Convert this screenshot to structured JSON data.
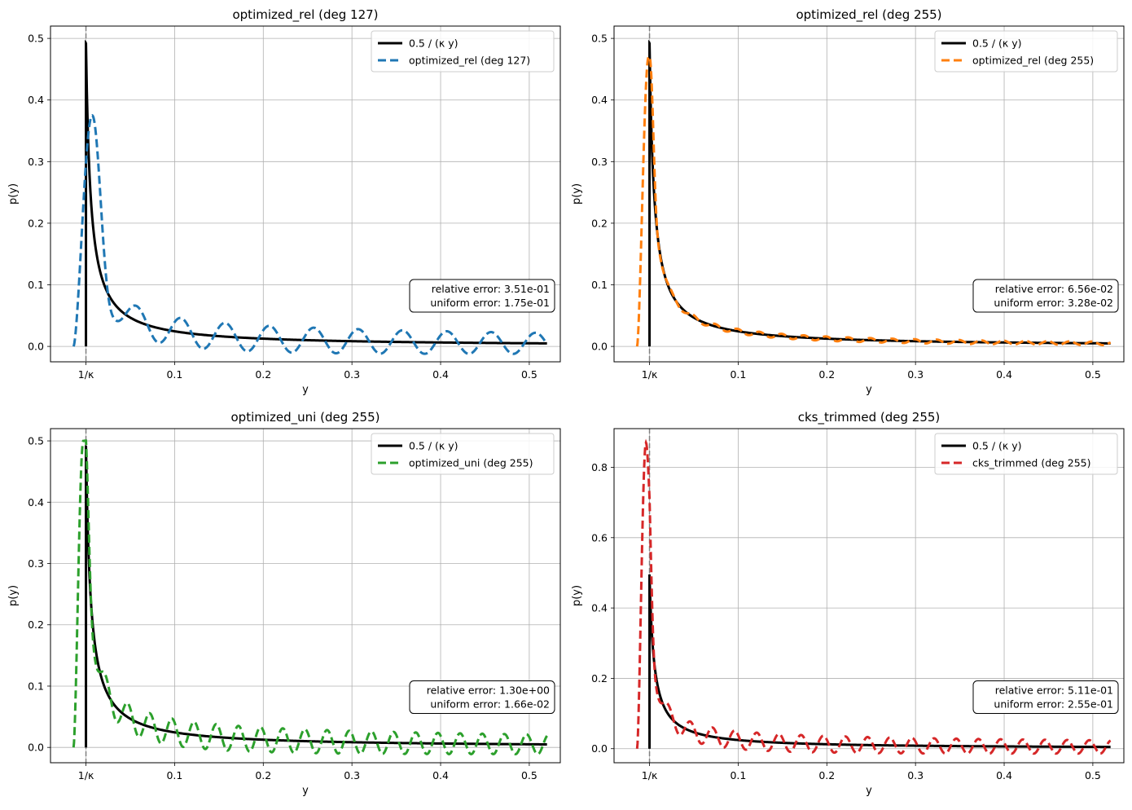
{
  "chart_data": [
    {
      "type": "line",
      "title": "optimized_rel (deg 127)",
      "xlabel": "y",
      "ylabel": "p(y)",
      "xlim": [
        -0.04,
        0.535
      ],
      "ylim": [
        -0.025,
        0.52
      ],
      "xticks": [
        0.1,
        0.2,
        0.3,
        0.4,
        0.5
      ],
      "xtick_labels": [
        "0.1",
        "0.2",
        "0.3",
        "0.4",
        "0.5"
      ],
      "special_tick": {
        "x": 0.0,
        "label": "1/κ"
      },
      "yticks": [
        0.0,
        0.1,
        0.2,
        0.3,
        0.4,
        0.5
      ],
      "ytick_labels": [
        "0.0",
        "0.1",
        "0.2",
        "0.3",
        "0.4",
        "0.5"
      ],
      "grid": true,
      "legend_position": "top-right",
      "reference": {
        "name": "0.5 / (κ y)",
        "color": "#000000",
        "y_at_cutoff": 0.492,
        "y_at_end": 0.014
      },
      "approx": {
        "name": "optimized_rel (deg 127)",
        "color": "#1f77b4",
        "peak": 0.375,
        "peak_x": 0.007,
        "tail_amplitude": 0.018,
        "tail_period": 0.05
      },
      "x_start": -0.014,
      "x_end": 0.52,
      "annotation": [
        "relative error: 3.51e-01",
        "uniform error: 1.75e-01"
      ]
    },
    {
      "type": "line",
      "title": "optimized_rel (deg 255)",
      "xlabel": "y",
      "ylabel": "p(y)",
      "xlim": [
        -0.04,
        0.535
      ],
      "ylim": [
        -0.025,
        0.52
      ],
      "xticks": [
        0.1,
        0.2,
        0.3,
        0.4,
        0.5
      ],
      "xtick_labels": [
        "0.1",
        "0.2",
        "0.3",
        "0.4",
        "0.5"
      ],
      "special_tick": {
        "x": 0.0,
        "label": "1/κ"
      },
      "yticks": [
        0.0,
        0.1,
        0.2,
        0.3,
        0.4,
        0.5
      ],
      "ytick_labels": [
        "0.0",
        "0.1",
        "0.2",
        "0.3",
        "0.4",
        "0.5"
      ],
      "grid": true,
      "legend_position": "top-right",
      "reference": {
        "name": "0.5 / (κ y)",
        "color": "#000000",
        "y_at_cutoff": 0.492,
        "y_at_end": 0.014
      },
      "approx": {
        "name": "optimized_rel (deg 255)",
        "color": "#ff7f0e",
        "peak": 0.47,
        "peak_x": -0.001,
        "tail_amplitude": 0.003,
        "tail_period": 0.025
      },
      "x_start": -0.014,
      "x_end": 0.52,
      "annotation": [
        "relative error: 6.56e-02",
        "uniform error: 3.28e-02"
      ]
    },
    {
      "type": "line",
      "title": "optimized_uni (deg 255)",
      "xlabel": "y",
      "ylabel": "p(y)",
      "xlim": [
        -0.04,
        0.535
      ],
      "ylim": [
        -0.025,
        0.52
      ],
      "xticks": [
        0.1,
        0.2,
        0.3,
        0.4,
        0.5
      ],
      "xtick_labels": [
        "0.1",
        "0.2",
        "0.3",
        "0.4",
        "0.5"
      ],
      "special_tick": {
        "x": 0.0,
        "label": "1/κ"
      },
      "yticks": [
        0.0,
        0.1,
        0.2,
        0.3,
        0.4,
        0.5
      ],
      "ytick_labels": [
        "0.0",
        "0.1",
        "0.2",
        "0.3",
        "0.4",
        "0.5"
      ],
      "grid": true,
      "legend_position": "top-right",
      "reference": {
        "name": "0.5 / (κ y)",
        "color": "#000000",
        "y_at_cutoff": 0.492,
        "y_at_end": 0.014
      },
      "approx": {
        "name": "optimized_uni (deg 255)",
        "color": "#2ca02c",
        "peak": 0.5,
        "peak_x": -0.003,
        "tail_amplitude": 0.017,
        "tail_period": 0.025
      },
      "x_start": -0.014,
      "x_end": 0.52,
      "annotation": [
        "relative error: 1.30e+00",
        "uniform error: 1.66e-02"
      ]
    },
    {
      "type": "line",
      "title": "cks_trimmed (deg 255)",
      "xlabel": "y",
      "ylabel": "p(y)",
      "xlim": [
        -0.04,
        0.535
      ],
      "ylim": [
        -0.04,
        0.91
      ],
      "xticks": [
        0.1,
        0.2,
        0.3,
        0.4,
        0.5
      ],
      "xtick_labels": [
        "0.1",
        "0.2",
        "0.3",
        "0.4",
        "0.5"
      ],
      "special_tick": {
        "x": 0.0,
        "label": "1/κ"
      },
      "yticks": [
        0.0,
        0.2,
        0.4,
        0.6,
        0.8
      ],
      "ytick_labels": [
        "0.0",
        "0.2",
        "0.4",
        "0.6",
        "0.8"
      ],
      "grid": true,
      "legend_position": "top-right",
      "reference": {
        "name": "0.5 / (κ y)",
        "color": "#000000",
        "y_at_cutoff": 0.492,
        "y_at_end": 0.014
      },
      "approx": {
        "name": "cks_trimmed (deg 255)",
        "color": "#d62728",
        "peak": 0.87,
        "peak_x": -0.004,
        "tail_amplitude": 0.02,
        "tail_period": 0.025
      },
      "x_start": -0.014,
      "x_end": 0.52,
      "annotation": [
        "relative error: 5.11e-01",
        "uniform error: 2.55e-01"
      ]
    }
  ]
}
